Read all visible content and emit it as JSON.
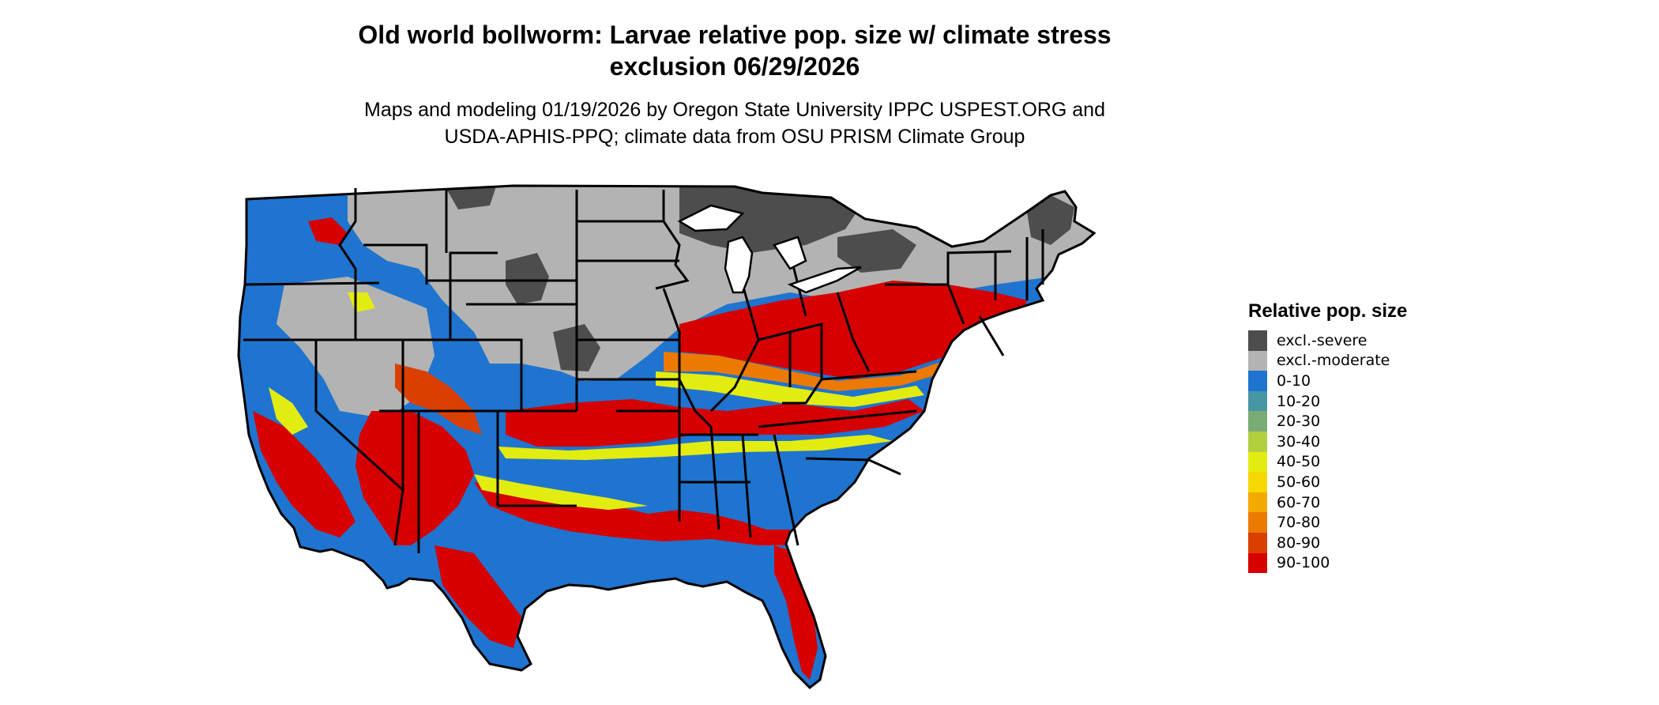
{
  "title_line1": "Old world bollworm: Larvae relative pop. size w/ climate stress",
  "title_line2": "exclusion 06/29/2026",
  "subtitle_line1": "Maps and modeling 01/19/2026 by Oregon State University IPPC USPEST.ORG and",
  "subtitle_line2": "USDA-APHIS-PPQ; climate data from OSU PRISM Climate Group",
  "legend": {
    "title": "Relative pop. size",
    "items": [
      {
        "label": "excl.-severe",
        "color": "#4d4d4d"
      },
      {
        "label": "excl.-moderate",
        "color": "#b3b3b3"
      },
      {
        "label": "0-10",
        "color": "#1f74cf"
      },
      {
        "label": "10-20",
        "color": "#4796a6"
      },
      {
        "label": "20-30",
        "color": "#7aab74"
      },
      {
        "label": "30-40",
        "color": "#b1cf3f"
      },
      {
        "label": "40-50",
        "color": "#e3ec10"
      },
      {
        "label": "50-60",
        "color": "#f6d700"
      },
      {
        "label": "60-70",
        "color": "#f2a900"
      },
      {
        "label": "70-80",
        "color": "#ec7a00"
      },
      {
        "label": "80-90",
        "color": "#db3f00"
      },
      {
        "label": "90-100",
        "color": "#d60000"
      }
    ]
  }
}
